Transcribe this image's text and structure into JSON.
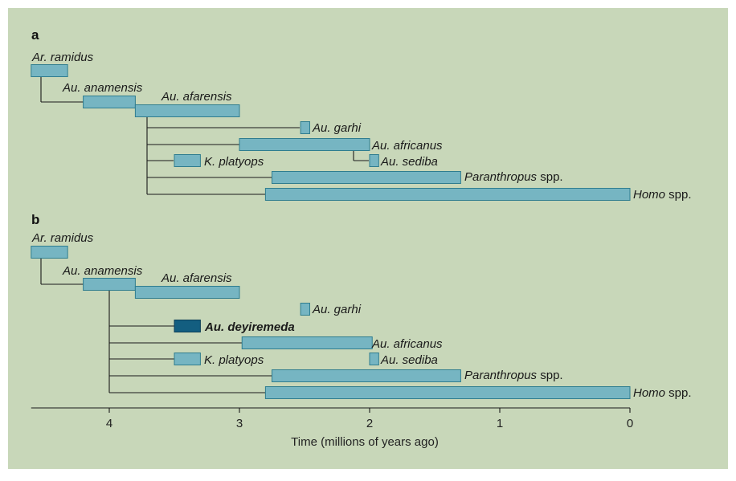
{
  "colors": {
    "background": "#c8d7b9",
    "bar": "#76b5c2",
    "bar_stroke": "#2f7d8f",
    "highlight_bar": "#135e80",
    "line": "#1a1a1a"
  },
  "axis": {
    "title": "Time (millions of years ago)",
    "ticks": [
      4,
      3,
      2,
      1,
      0
    ],
    "range": [
      4.6,
      0
    ]
  },
  "panels": [
    {
      "letter": "a",
      "taxa": [
        {
          "name": "Ar. ramidus",
          "start": 4.6,
          "end": 4.32,
          "italic": true
        },
        {
          "name": "Au. anamensis",
          "start": 4.2,
          "end": 3.8,
          "italic": true
        },
        {
          "name": "Au. afarensis",
          "start": 3.8,
          "end": 3.0,
          "italic": true
        },
        {
          "name": "Au. garhi",
          "start": 2.53,
          "end": 2.46,
          "italic": true
        },
        {
          "name": "Au. africanus",
          "start": 3.0,
          "end": 2.0,
          "italic": true
        },
        {
          "name": "Au. sediba",
          "start": 2.0,
          "end": 1.93,
          "italic": true
        },
        {
          "name": "K. platyops",
          "start": 3.5,
          "end": 3.3,
          "italic": true
        },
        {
          "name": "Paranthropus",
          "suffix": " spp.",
          "start": 2.75,
          "end": 1.3,
          "italic": true
        },
        {
          "name": "Homo",
          "suffix": " spp.",
          "start": 2.8,
          "end": 0.0,
          "italic": true
        }
      ]
    },
    {
      "letter": "b",
      "taxa": [
        {
          "name": "Ar. ramidus",
          "start": 4.6,
          "end": 4.32,
          "italic": true
        },
        {
          "name": "Au. anamensis",
          "start": 4.2,
          "end": 3.8,
          "italic": true
        },
        {
          "name": "Au. afarensis",
          "start": 3.8,
          "end": 3.0,
          "italic": true
        },
        {
          "name": "Au. garhi",
          "start": 2.53,
          "end": 2.46,
          "italic": true
        },
        {
          "name": "Au. deyiremeda",
          "start": 3.5,
          "end": 3.3,
          "italic": true,
          "highlight": true
        },
        {
          "name": "Au. africanus",
          "start": 2.98,
          "end": 1.98,
          "italic": true
        },
        {
          "name": "K. platyops",
          "start": 3.5,
          "end": 3.3,
          "italic": true
        },
        {
          "name": "Au. sediba",
          "start": 2.0,
          "end": 1.93,
          "italic": true
        },
        {
          "name": "Paranthropus",
          "suffix": " spp.",
          "start": 2.75,
          "end": 1.3,
          "italic": true
        },
        {
          "name": "Homo",
          "suffix": " spp.",
          "start": 2.8,
          "end": 0.0,
          "italic": true
        }
      ]
    }
  ]
}
